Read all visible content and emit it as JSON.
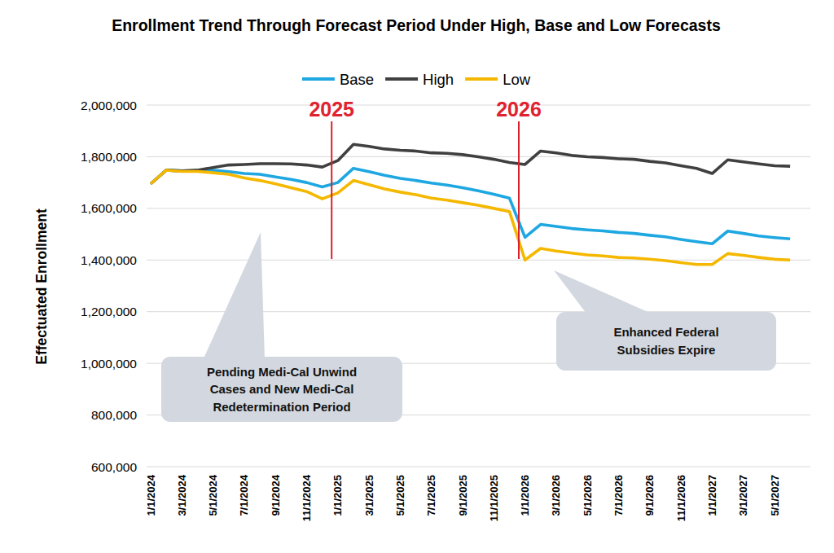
{
  "chart_data": {
    "type": "line",
    "title": "Enrollment Trend Through Forecast Period Under High, Base and Low Forecasts",
    "y_label": "Effectuated Enrollment",
    "categories": [
      "1/1/2024",
      null,
      "3/1/2024",
      null,
      "5/1/2024",
      null,
      "7/1/2024",
      null,
      "9/1/2024",
      null,
      "11/1/2024",
      null,
      "1/1/2025",
      null,
      "3/1/2025",
      null,
      "5/1/2025",
      null,
      "7/1/2025",
      null,
      "9/1/2025",
      null,
      "11/1/2025",
      null,
      "1/1/2026",
      null,
      "3/1/2026",
      null,
      "5/1/2026",
      null,
      "7/1/2026",
      null,
      "9/1/2026",
      null,
      "11/1/2026",
      null,
      "1/1/2027",
      null,
      "3/1/2027",
      null,
      "5/1/2027",
      null
    ],
    "series": [
      {
        "name": "Base",
        "color": "#1ea7e1",
        "values": [
          1695000,
          1748000,
          1745000,
          1745000,
          1748000,
          1742000,
          1735000,
          1732000,
          1722000,
          1712000,
          1700000,
          1683000,
          1700000,
          1755000,
          1742000,
          1728000,
          1716000,
          1708000,
          1698000,
          1690000,
          1680000,
          1668000,
          1655000,
          1640000,
          1488000,
          1538000,
          1530000,
          1522000,
          1517000,
          1513000,
          1507000,
          1503000,
          1496000,
          1490000,
          1480000,
          1471000,
          1463000,
          1512000,
          1503000,
          1493000,
          1487000,
          1482000
        ]
      },
      {
        "name": "High",
        "color": "#404040",
        "values": [
          1695000,
          1748000,
          1745000,
          1748000,
          1758000,
          1768000,
          1770000,
          1773000,
          1773000,
          1772000,
          1768000,
          1760000,
          1785000,
          1848000,
          1840000,
          1830000,
          1825000,
          1822000,
          1815000,
          1813000,
          1808000,
          1800000,
          1790000,
          1778000,
          1770000,
          1822000,
          1815000,
          1805000,
          1800000,
          1797000,
          1792000,
          1790000,
          1782000,
          1776000,
          1765000,
          1755000,
          1735000,
          1788000,
          1780000,
          1772000,
          1765000,
          1763000
        ]
      },
      {
        "name": "Low",
        "color": "#f5b800",
        "values": [
          1695000,
          1748000,
          1743000,
          1743000,
          1738000,
          1732000,
          1718000,
          1708000,
          1695000,
          1680000,
          1665000,
          1637000,
          1660000,
          1708000,
          1692000,
          1675000,
          1663000,
          1653000,
          1640000,
          1632000,
          1622000,
          1612000,
          1600000,
          1588000,
          1400000,
          1445000,
          1435000,
          1427000,
          1420000,
          1416000,
          1410000,
          1408000,
          1403000,
          1398000,
          1390000,
          1383000,
          1383000,
          1425000,
          1418000,
          1410000,
          1403000,
          1400000
        ]
      }
    ],
    "ylim": [
      600000,
      2000000
    ],
    "yticks": [
      {
        "value": 600000,
        "label": "600,000"
      },
      {
        "value": 800000,
        "label": "800,000"
      },
      {
        "value": 1000000,
        "label": "1,000,000"
      },
      {
        "value": 1200000,
        "label": "1,200,000"
      },
      {
        "value": 1400000,
        "label": "1,400,000"
      },
      {
        "value": 1600000,
        "label": "1,600,000"
      },
      {
        "value": 1800000,
        "label": "1,800,000"
      },
      {
        "value": 2000000,
        "label": "2,000,000"
      }
    ],
    "grid": true,
    "legend": "top",
    "year_markers": [
      "2025",
      "2026"
    ],
    "annotations": [
      "Pending Medi-Cal Unwind Cases and New Medi-Cal Redetermination Period",
      "Enhanced Federal Subsidies Expire"
    ]
  }
}
